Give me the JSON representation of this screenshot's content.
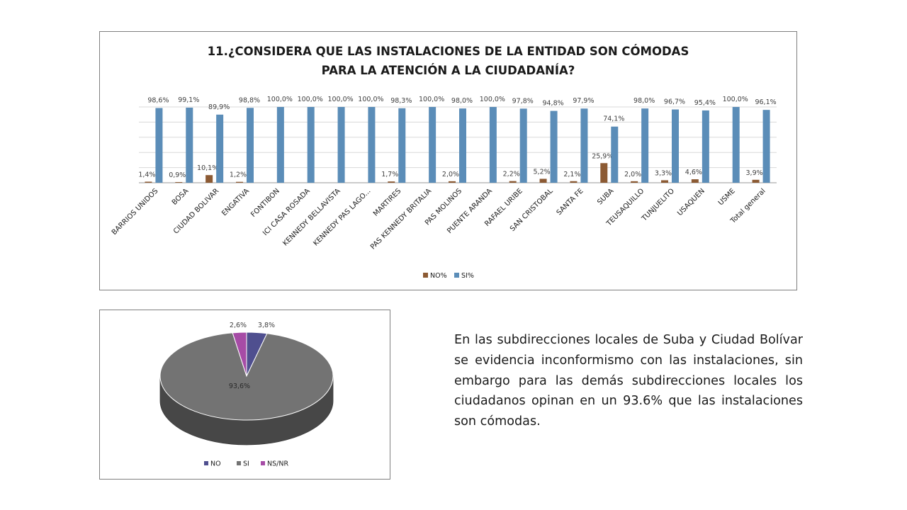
{
  "chart_data": [
    {
      "type": "bar",
      "title_lines": [
        "11.¿CONSIDERA QUE LAS INSTALACIONES DE LA ENTIDAD SON CÓMODAS",
        "PARA LA ATENCIÓN A LA CIUDADANÍA?"
      ],
      "categories": [
        "BARRIOS UNIDOS",
        "BOSA",
        "CIUDAD BOLIVAR",
        "ENGATIVA",
        "FONTIBON",
        "ICI CASA ROSADA",
        "KENNEDY BELLAVISTA",
        "KENNEDY PAS LAGO...",
        "MARTIRES",
        "PAS KENNEDY BRITALIA",
        "PAS MOLINOS",
        "PUENTE ARANDA",
        "RAFAEL URIBE",
        "SAN CRISTOBAL",
        "SANTA FE",
        "SUBA",
        "TEUSAQUILLO",
        "TUNJUELITO",
        "USAQUEN",
        "USME",
        "Total general"
      ],
      "series": [
        {
          "name": "NO%",
          "color": "#8c5a33",
          "values": [
            1.4,
            0.9,
            10.1,
            1.2,
            0,
            0,
            0,
            0,
            1.7,
            0,
            2.0,
            0,
            2.2,
            5.2,
            2.1,
            25.9,
            2.0,
            3.3,
            4.6,
            0,
            3.9
          ],
          "labels": [
            "1,4%",
            "0,9%",
            "10,1%",
            "1,2%",
            "",
            "",
            "",
            "",
            "1,7%",
            "",
            "2,0%",
            "",
            "2,2%",
            "5,2%",
            "2,1%",
            "25,9%",
            "2,0%",
            "3,3%",
            "4,6%",
            "",
            "3,9%"
          ]
        },
        {
          "name": "SI%",
          "color": "#5b8db8",
          "values": [
            98.6,
            99.1,
            89.9,
            98.8,
            100,
            100,
            100,
            100,
            98.3,
            100,
            98.0,
            100,
            97.8,
            94.8,
            97.9,
            74.1,
            98.0,
            96.7,
            95.4,
            100,
            96.1
          ],
          "labels": [
            "98,6%",
            "99,1%",
            "89,9%",
            "98,8%",
            "100,0%",
            "100,0%",
            "100,0%",
            "100,0%",
            "98,3%",
            "100,0%",
            "98,0%",
            "100,0%",
            "97,8%",
            "94,8%",
            "97,9%",
            "74,1%",
            "98,0%",
            "96,7%",
            "95,4%",
            "100,0%",
            "96,1%"
          ]
        }
      ],
      "ylim": [
        0,
        100
      ],
      "grid": true,
      "legend": "bottom"
    },
    {
      "type": "pie",
      "slices": [
        {
          "name": "NO",
          "value": 3.8,
          "label": "3,8%",
          "color": "#4f4f8f"
        },
        {
          "name": "SI",
          "value": 93.6,
          "label": "93,6%",
          "color": "#737373"
        },
        {
          "name": "NS/NR",
          "value": 2.6,
          "label": "2,6%",
          "color": "#a64ca6"
        }
      ],
      "legend": "bottom"
    }
  ],
  "description": "En las subdirecciones locales de Suba y Ciudad Bolívar se evidencia  inconformismo con las instalaciones, sin embargo para  las demás subdirecciones locales los ciudadanos opinan en un 93.6% que las instalaciones son cómodas."
}
